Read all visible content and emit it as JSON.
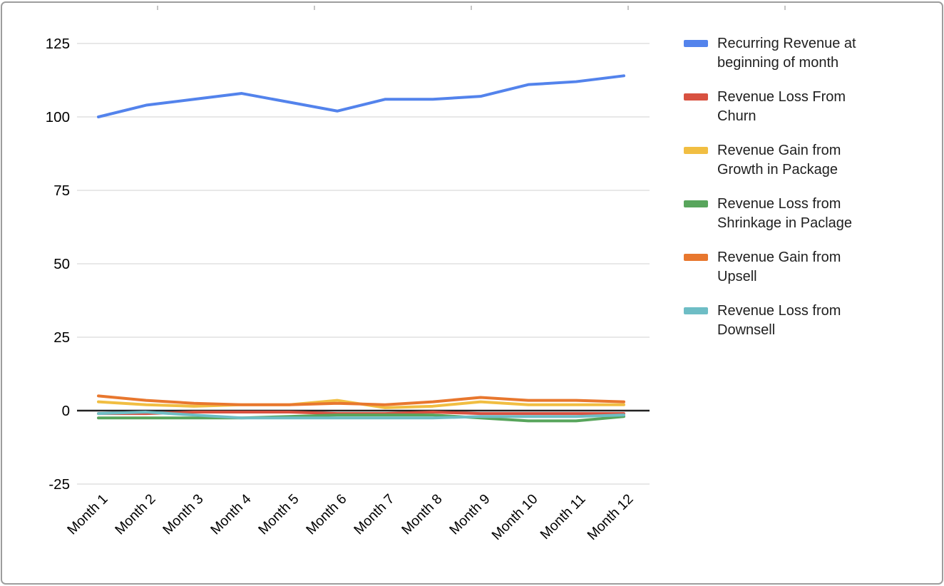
{
  "window": {
    "background": "#ffffff",
    "border_color": "#9d9d9d"
  },
  "chart_data": {
    "type": "line",
    "title": "",
    "xlabel": "",
    "ylabel": "",
    "categories": [
      "Month 1",
      "Month 2",
      "Month 3",
      "Month 4",
      "Month 5",
      "Month 6",
      "Month 7",
      "Month 8",
      "Month 9",
      "Month 10",
      "Month 11",
      "Month 12"
    ],
    "series": [
      {
        "name": "Recurring Revenue at beginning of month",
        "color": "#5383EC",
        "values": [
          100,
          104,
          106,
          108,
          105,
          102,
          106,
          106,
          107,
          111,
          112,
          114
        ]
      },
      {
        "name": "Revenue Loss From Churn",
        "color": "#D85140",
        "values": [
          -1,
          -1,
          -0.5,
          -0.5,
          -0.5,
          -1,
          -1,
          -0.5,
          -1,
          -1,
          -1,
          -1
        ]
      },
      {
        "name": "Revenue Gain from Growth in Package",
        "color": "#F1BE42",
        "values": [
          3,
          2,
          1.5,
          2,
          2,
          3.5,
          1,
          1.5,
          3,
          2,
          2,
          2
        ]
      },
      {
        "name": "Revenue Loss from Shrinkage in Paclage",
        "color": "#58A55C",
        "values": [
          -2.5,
          -2.5,
          -2.5,
          -2.5,
          -2,
          -1.5,
          -1.5,
          -1.5,
          -2.5,
          -3.5,
          -3.5,
          -2
        ]
      },
      {
        "name": "Revenue Gain from Upsell",
        "color": "#E8772E",
        "values": [
          5,
          3.5,
          2.5,
          2,
          2,
          2.5,
          2,
          3,
          4.5,
          3.5,
          3.5,
          3
        ]
      },
      {
        "name": "Revenue Loss from Downsell",
        "color": "#6EBDC5",
        "values": [
          -1,
          -0.5,
          -1.5,
          -2.5,
          -2.5,
          -2.5,
          -2.5,
          -2.5,
          -2,
          -2,
          -2,
          -1.5
        ]
      }
    ],
    "ylim": [
      -25,
      125
    ],
    "yticks": [
      125,
      100,
      75,
      50,
      25,
      0,
      -25
    ],
    "grid": true,
    "zero_axis_color": "#212121",
    "gridline_color": "#e0e0e0",
    "axis_text_color": "#000000",
    "legend_position": "right"
  },
  "legend": {
    "entries": [
      {
        "line1": "Recurring Revenue at",
        "line2": "beginning of month"
      },
      {
        "line1": "Revenue Loss From",
        "line2": "Churn"
      },
      {
        "line1": "Revenue Gain from",
        "line2": "Growth in Package"
      },
      {
        "line1": "Revenue Loss from",
        "line2": "Shrinkage in Paclage"
      },
      {
        "line1": "Revenue Gain from",
        "line2": "Upsell"
      },
      {
        "line1": "Revenue Loss from",
        "line2": "Downsell"
      }
    ]
  }
}
